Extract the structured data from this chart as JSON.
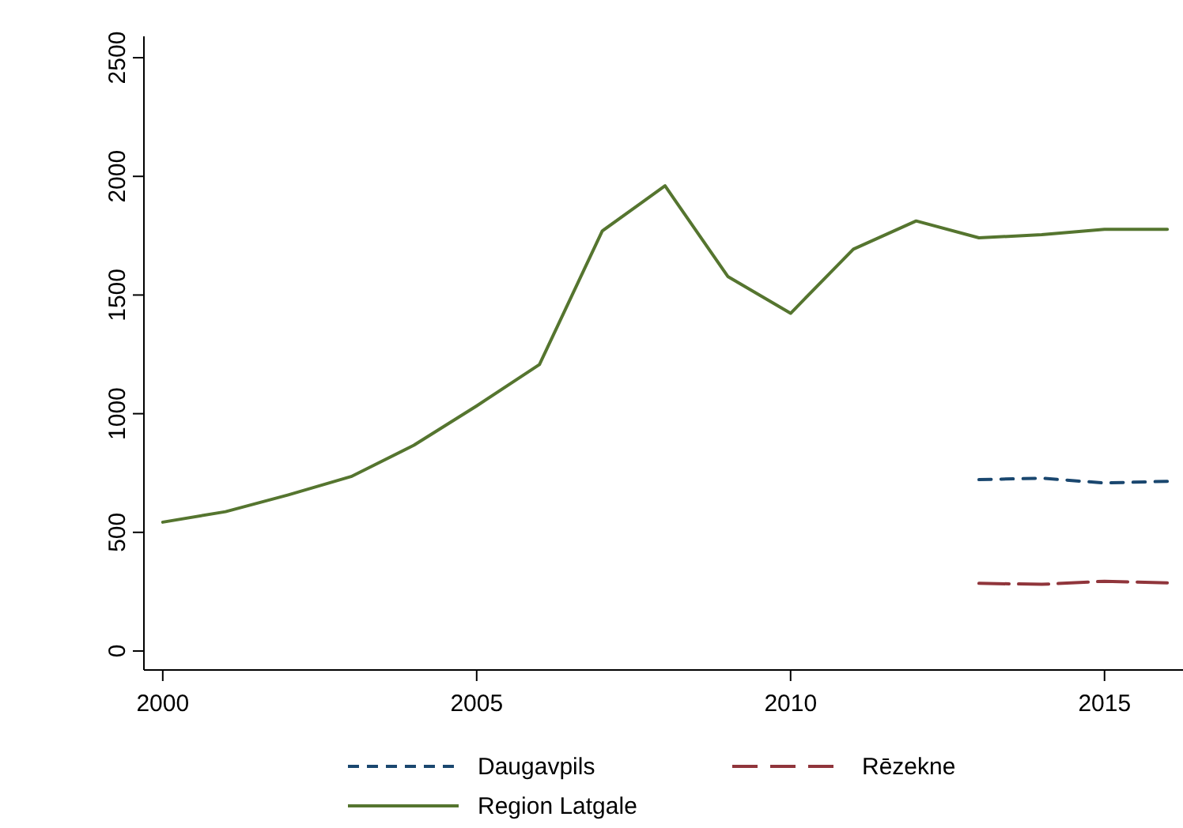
{
  "chart_data": {
    "type": "line",
    "x": [
      2000,
      2001,
      2002,
      2003,
      2004,
      2005,
      2006,
      2007,
      2008,
      2009,
      2010,
      2011,
      2012,
      2013,
      2014,
      2015,
      2016
    ],
    "series": [
      {
        "name": "Daugavpils",
        "color": "#1a476f",
        "line_style": "dashed",
        "x": [
          2013,
          2014,
          2015,
          2016
        ],
        "values": [
          722,
          728,
          708,
          715
        ]
      },
      {
        "name": "Rēzekne",
        "color": "#90353b",
        "line_style": "dashed",
        "x": [
          2013,
          2014,
          2015,
          2016
        ],
        "values": [
          285,
          281,
          294,
          287
        ]
      },
      {
        "name": "Region Latgale",
        "color": "#55752f",
        "line_style": "solid",
        "values": [
          543,
          587,
          658,
          735,
          867,
          1033,
          1207,
          1770,
          1960,
          1578,
          1423,
          1693,
          1812,
          1741,
          1754,
          1777,
          1777
        ]
      }
    ],
    "xlim": [
      1999.7,
      2016.25
    ],
    "xticks": [
      2000,
      2005,
      2010,
      2015
    ],
    "ylim": [
      -80,
      2590
    ],
    "yticks": [
      0,
      500,
      1000,
      1500,
      2000,
      2500
    ],
    "grid": false,
    "legend": "bottom",
    "marker": "none"
  }
}
